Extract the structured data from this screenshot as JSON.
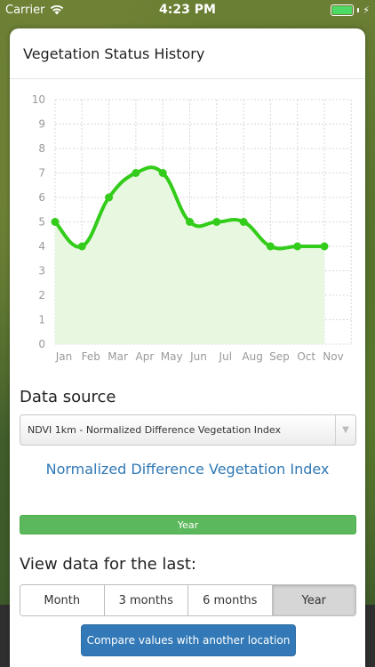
{
  "status_bar": {
    "carrier": "Carrier",
    "time": "4:23 PM"
  },
  "header": {
    "title": "Vegetation Status History"
  },
  "chart_data": {
    "type": "area",
    "categories": [
      "Jan",
      "Feb",
      "Mar",
      "Apr",
      "May",
      "Jun",
      "Jul",
      "Aug",
      "Sep",
      "Oct",
      "Nov"
    ],
    "values": [
      5,
      4,
      6,
      7,
      7,
      5,
      5,
      5,
      4,
      4,
      4
    ],
    "ylim": [
      0,
      10
    ],
    "yticks": [
      "0",
      "1",
      "2",
      "3",
      "4",
      "5",
      "6",
      "7",
      "8",
      "9",
      "10"
    ],
    "grid": true,
    "line_color": "#33cc1a",
    "fill_color": "#e8f8e0"
  },
  "data_source": {
    "title": "Data source",
    "selected": "NDVI 1km - Normalized Difference Vegetation Index",
    "dataset_name": "Normalized Difference Vegetation Index"
  },
  "period_bar": {
    "label": "Year"
  },
  "view_data": {
    "title": "View data for the last:",
    "options": [
      "Month",
      "3 months",
      "6 months",
      "Year"
    ],
    "selected": "Year"
  },
  "compare_button": {
    "label": "Compare values with another location"
  },
  "colors": {
    "accent": "#3379b7",
    "success": "#5cb85c",
    "link": "#2f78b5"
  }
}
